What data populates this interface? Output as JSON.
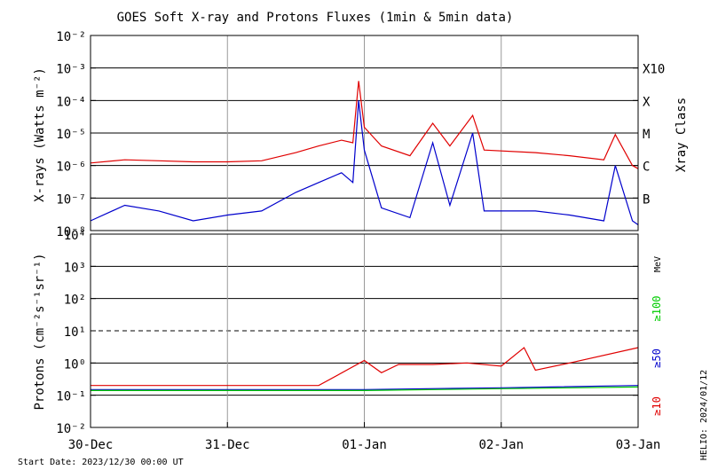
{
  "chart_data": [
    {
      "type": "line",
      "title": "GOES Soft X-ray and Protons Fluxes   (1min & 5min data)",
      "ylabel": "X-rays (Watts m⁻²)",
      "y_scale": "log",
      "ylim": [
        1e-08,
        0.01
      ],
      "y_ticks": [
        {
          "label": "10⁻²",
          "value": 0.01
        },
        {
          "label": "10⁻³",
          "value": 0.001
        },
        {
          "label": "10⁻⁴",
          "value": 0.0001
        },
        {
          "label": "10⁻⁵",
          "value": 1e-05
        },
        {
          "label": "10⁻⁶",
          "value": 1e-06
        },
        {
          "label": "10⁻⁷",
          "value": 1e-07
        },
        {
          "label": "10⁻⁸",
          "value": 1e-08
        }
      ],
      "right_axis_label": "Xray Class",
      "class_labels": [
        {
          "label": "X10",
          "value": 0.001
        },
        {
          "label": "X",
          "value": 0.0001
        },
        {
          "label": "M",
          "value": 1e-05
        },
        {
          "label": "C",
          "value": 1e-06
        },
        {
          "label": "B",
          "value": 1e-07
        }
      ],
      "grid_horizontal": true,
      "series": [
        {
          "color": "#e00000",
          "points": [
            [
              "2023-12-30 00:00",
              1.2e-06
            ],
            [
              "2023-12-30 06:00",
              1.5e-06
            ],
            [
              "2023-12-30 12:00",
              1.4e-06
            ],
            [
              "2023-12-30 18:00",
              1.3e-06
            ],
            [
              "2023-12-31 00:00",
              1.3e-06
            ],
            [
              "2023-12-31 06:00",
              1.4e-06
            ],
            [
              "2023-12-31 12:00",
              2.5e-06
            ],
            [
              "2023-12-31 16:00",
              4e-06
            ],
            [
              "2023-12-31 20:00",
              6e-06
            ],
            [
              "2023-12-31 22:00",
              5e-06
            ],
            [
              "2023-12-31 23:00",
              0.0004
            ],
            [
              "2024-01-01 00:00",
              1.5e-05
            ],
            [
              "2024-01-01 03:00",
              4e-06
            ],
            [
              "2024-01-01 08:00",
              2e-06
            ],
            [
              "2024-01-01 12:00",
              2e-05
            ],
            [
              "2024-01-01 15:00",
              4e-06
            ],
            [
              "2024-01-01 19:00",
              3.5e-05
            ],
            [
              "2024-01-01 21:00",
              3e-06
            ],
            [
              "2024-01-02 06:00",
              2.5e-06
            ],
            [
              "2024-01-02 12:00",
              2e-06
            ],
            [
              "2024-01-02 18:00",
              1.5e-06
            ],
            [
              "2024-01-02 20:00",
              9e-06
            ],
            [
              "2024-01-02 23:00",
              1e-06
            ],
            [
              "2024-01-03 00:00",
              8e-07
            ]
          ]
        },
        {
          "color": "#0000cc",
          "points": [
            [
              "2023-12-30 00:00",
              2e-08
            ],
            [
              "2023-12-30 06:00",
              6e-08
            ],
            [
              "2023-12-30 12:00",
              4e-08
            ],
            [
              "2023-12-30 18:00",
              2e-08
            ],
            [
              "2023-12-31 00:00",
              3e-08
            ],
            [
              "2023-12-31 06:00",
              4e-08
            ],
            [
              "2023-12-31 12:00",
              1.5e-07
            ],
            [
              "2023-12-31 16:00",
              3e-07
            ],
            [
              "2023-12-31 20:00",
              6e-07
            ],
            [
              "2023-12-31 22:00",
              3e-07
            ],
            [
              "2023-12-31 23:00",
              0.0001
            ],
            [
              "2024-01-01 00:00",
              3e-06
            ],
            [
              "2024-01-01 03:00",
              5e-08
            ],
            [
              "2024-01-01 08:00",
              2.5e-08
            ],
            [
              "2024-01-01 12:00",
              5e-06
            ],
            [
              "2024-01-01 15:00",
              6e-08
            ],
            [
              "2024-01-01 19:00",
              1e-05
            ],
            [
              "2024-01-01 21:00",
              4e-08
            ],
            [
              "2024-01-02 06:00",
              4e-08
            ],
            [
              "2024-01-02 12:00",
              3e-08
            ],
            [
              "2024-01-02 18:00",
              2e-08
            ],
            [
              "2024-01-02 20:00",
              1e-06
            ],
            [
              "2024-01-02 23:00",
              2e-08
            ],
            [
              "2024-01-03 00:00",
              1.5e-08
            ]
          ]
        }
      ]
    },
    {
      "type": "line",
      "ylabel": "Protons (cm⁻²s⁻¹sr⁻¹)",
      "y_scale": "log",
      "ylim": [
        0.01,
        10000
      ],
      "y_ticks": [
        {
          "label": "10⁴",
          "value": 10000
        },
        {
          "label": "10³",
          "value": 1000
        },
        {
          "label": "10²",
          "value": 100
        },
        {
          "label": "10¹",
          "value": 10
        },
        {
          "label": "10⁰",
          "value": 1
        },
        {
          "label": "10⁻¹",
          "value": 0.1
        },
        {
          "label": "10⁻²",
          "value": 0.01
        }
      ],
      "threshold_dashed": 10,
      "right_axis_unit": "MeV",
      "grid_horizontal": true,
      "series": [
        {
          "name": "≥10",
          "color": "#e00000",
          "points": [
            [
              "2023-12-30 00:00",
              0.2
            ],
            [
              "2023-12-30 12:00",
              0.2
            ],
            [
              "2023-12-31 00:00",
              0.2
            ],
            [
              "2023-12-31 16:00",
              0.2
            ],
            [
              "2024-01-01 00:00",
              1.2
            ],
            [
              "2024-01-01 03:00",
              0.5
            ],
            [
              "2024-01-01 06:00",
              0.9
            ],
            [
              "2024-01-01 12:00",
              0.9
            ],
            [
              "2024-01-01 18:00",
              1.0
            ],
            [
              "2024-01-02 00:00",
              0.8
            ],
            [
              "2024-01-02 04:00",
              3.0
            ],
            [
              "2024-01-02 06:00",
              0.6
            ],
            [
              "2024-01-02 12:00",
              1.0
            ],
            [
              "2024-01-03 00:00",
              3.0
            ]
          ]
        },
        {
          "name": "≥50",
          "color": "#0000cc",
          "points": [
            [
              "2023-12-30 00:00",
              0.15
            ],
            [
              "2024-01-01 00:00",
              0.15
            ],
            [
              "2024-01-02 00:00",
              0.17
            ],
            [
              "2024-01-03 00:00",
              0.2
            ]
          ]
        },
        {
          "name": "≥100",
          "color": "#00cc00",
          "points": [
            [
              "2023-12-30 00:00",
              0.14
            ],
            [
              "2024-01-01 00:00",
              0.14
            ],
            [
              "2024-01-02 00:00",
              0.16
            ],
            [
              "2024-01-03 00:00",
              0.18
            ]
          ]
        }
      ]
    }
  ],
  "x_axis": {
    "start": "2023-12-30 00:00",
    "end": "2024-01-03 00:00",
    "ticks": [
      {
        "label": "30-Dec",
        "value": "2023-12-30 00:00"
      },
      {
        "label": "31-Dec",
        "value": "2023-12-31 00:00"
      },
      {
        "label": "01-Jan",
        "value": "2024-01-01 00:00"
      },
      {
        "label": "02-Jan",
        "value": "2024-01-02 00:00"
      },
      {
        "label": "03-Jan",
        "value": "2024-01-03 00:00"
      }
    ]
  },
  "footer": {
    "start_date": "Start Date: 2023/12/30 00:00 UT",
    "credit": "HELIO: 2024/01/12"
  }
}
